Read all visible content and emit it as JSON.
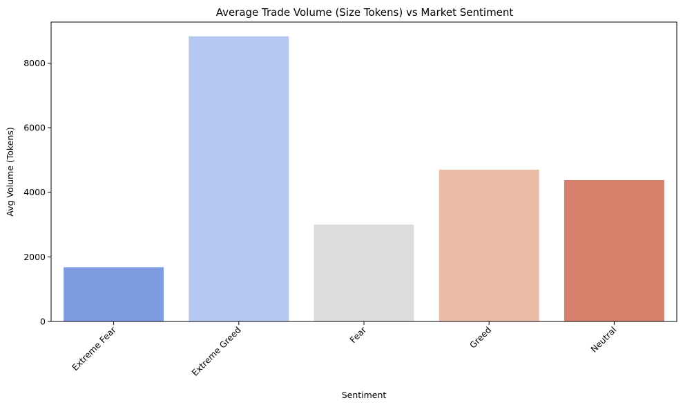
{
  "chart_data": {
    "type": "bar",
    "title": "Average Trade Volume (Size Tokens) vs Market Sentiment",
    "xlabel": "Sentiment",
    "ylabel": "Avg Volume (Tokens)",
    "categories": [
      "Extreme Fear",
      "Extreme Greed",
      "Fear",
      "Greed",
      "Neutral"
    ],
    "values": [
      1680,
      8830,
      3000,
      4700,
      4380
    ],
    "colors": [
      "#7f9ce3",
      "#b5c9f2",
      "#dcdcdc",
      "#ebbca5",
      "#d5806b"
    ],
    "ylim": [
      0,
      9270
    ],
    "yticks": [
      0,
      2000,
      4000,
      6000,
      8000
    ],
    "ytick_labels": [
      "0",
      "2000",
      "4000",
      "6000",
      "8000"
    ],
    "grid": false,
    "xtick_rotation": 45
  }
}
